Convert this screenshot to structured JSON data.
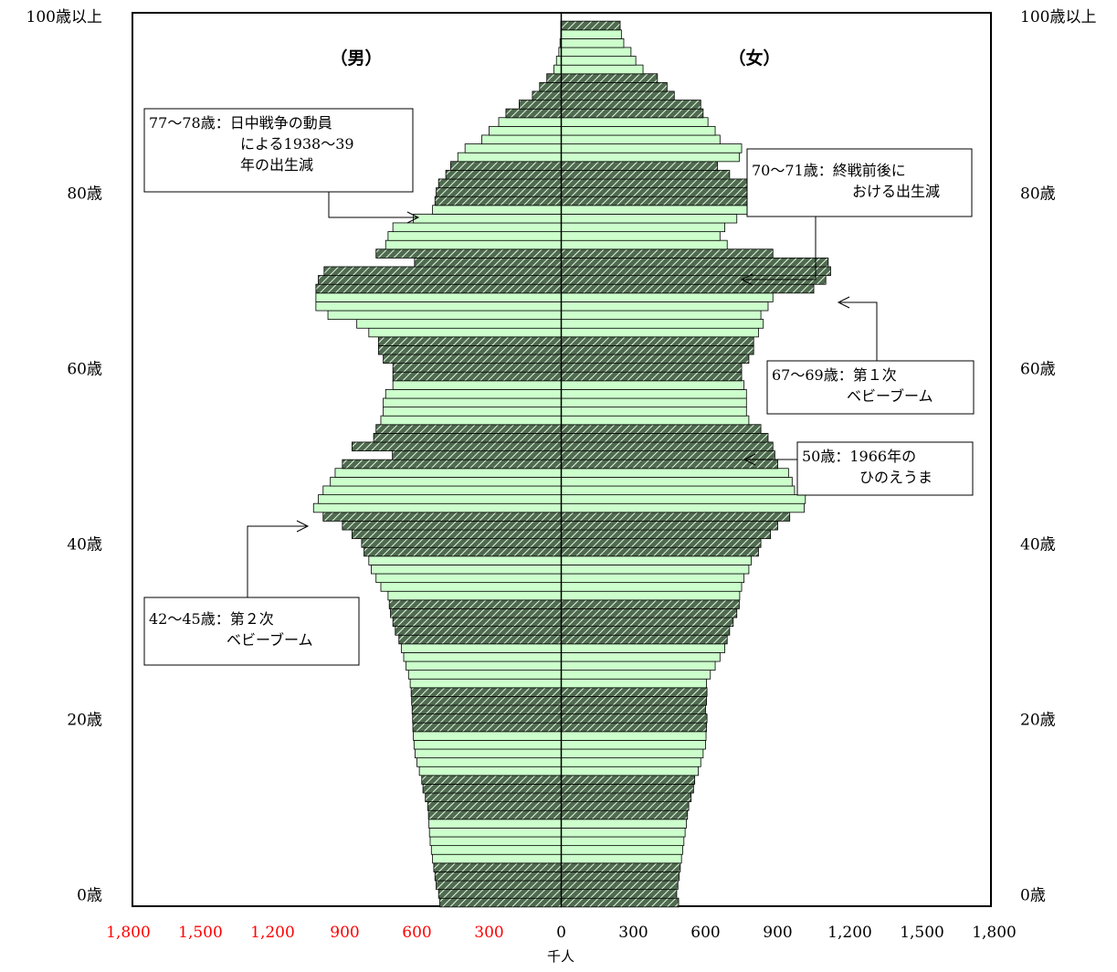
{
  "chart_data": {
    "type": "bar",
    "orientation": "horizontal-pyramid",
    "unit": "千人",
    "x_ticks": [
      {
        "value": -1800,
        "label": "1,800"
      },
      {
        "value": -1500,
        "label": "1,500"
      },
      {
        "value": -1200,
        "label": "1,200"
      },
      {
        "value": -900,
        "label": "900"
      },
      {
        "value": -600,
        "label": "600"
      },
      {
        "value": -300,
        "label": "300"
      },
      {
        "value": 0,
        "label": "0"
      },
      {
        "value": 300,
        "label": "300"
      },
      {
        "value": 600,
        "label": "600"
      },
      {
        "value": 900,
        "label": "900"
      },
      {
        "value": 1200,
        "label": "1,200"
      },
      {
        "value": 1500,
        "label": "1,500"
      },
      {
        "value": 1800,
        "label": "1,800"
      }
    ],
    "xlim": [
      -1800,
      1800
    ],
    "ylim": [
      0,
      100
    ],
    "age_ticks": [
      {
        "age": 0,
        "label": "0歳"
      },
      {
        "age": 20,
        "label": "20歳"
      },
      {
        "age": 40,
        "label": "40歳"
      },
      {
        "age": 60,
        "label": "60歳"
      },
      {
        "age": 80,
        "label": "80歳"
      },
      {
        "age": 100,
        "label": "100歳以上"
      }
    ],
    "male_label": "（男）",
    "female_label": "（女）",
    "colors": {
      "light": "#ccffcc",
      "dark": "#4f6b4f",
      "hatch": "#e8f5e8",
      "outline": "#000000"
    },
    "ages": [
      0,
      1,
      2,
      3,
      4,
      5,
      6,
      7,
      8,
      9,
      10,
      11,
      12,
      13,
      14,
      15,
      16,
      17,
      18,
      19,
      20,
      21,
      22,
      23,
      24,
      25,
      26,
      27,
      28,
      29,
      30,
      31,
      32,
      33,
      34,
      35,
      36,
      37,
      38,
      39,
      40,
      41,
      42,
      43,
      44,
      45,
      46,
      47,
      48,
      49,
      50,
      51,
      52,
      53,
      54,
      55,
      56,
      57,
      58,
      59,
      60,
      61,
      62,
      63,
      64,
      65,
      66,
      67,
      68,
      69,
      70,
      71,
      72,
      73,
      74,
      75,
      76,
      77,
      78,
      79,
      80,
      81,
      82,
      83,
      84,
      85,
      86,
      87,
      88,
      89,
      90,
      91,
      92,
      93,
      94,
      95,
      96,
      97,
      98,
      99,
      100
    ],
    "male": [
      505,
      510,
      520,
      525,
      530,
      535,
      540,
      545,
      548,
      550,
      552,
      555,
      565,
      575,
      580,
      590,
      600,
      608,
      612,
      615,
      617,
      618,
      620,
      622,
      624,
      628,
      635,
      645,
      655,
      665,
      675,
      690,
      700,
      710,
      715,
      720,
      750,
      770,
      790,
      800,
      820,
      830,
      870,
      910,
      990,
      1030,
      1010,
      990,
      960,
      940,
      910,
      702,
      870,
      780,
      770,
      750,
      740,
      740,
      730,
      700,
      700,
      700,
      740,
      760,
      760,
      800,
      850,
      970,
      1020,
      1020,
      1020,
      1010,
      986,
      610,
      770,
      730,
      720,
      700,
      615,
      535,
      525,
      520,
      510,
      480,
      460,
      430,
      400,
      330,
      300,
      260,
      230,
      175,
      120,
      90,
      60,
      30,
      20,
      10,
      5,
      2,
      2
    ],
    "female": [
      488,
      480,
      485,
      490,
      495,
      500,
      505,
      510,
      515,
      520,
      525,
      530,
      540,
      550,
      555,
      570,
      580,
      590,
      600,
      602,
      604,
      606,
      600,
      604,
      606,
      604,
      620,
      640,
      660,
      680,
      690,
      700,
      715,
      730,
      740,
      742,
      750,
      760,
      780,
      790,
      820,
      830,
      870,
      900,
      950,
      1010,
      1015,
      970,
      960,
      945,
      900,
      888,
      880,
      860,
      830,
      780,
      770,
      770,
      770,
      760,
      750,
      750,
      780,
      800,
      800,
      820,
      840,
      830,
      860,
      880,
      1050,
      1100,
      1120,
      1110,
      880,
      690,
      660,
      680,
      730,
      870,
      875,
      865,
      840,
      700,
      650,
      740,
      750,
      660,
      640,
      610,
      590,
      580,
      470,
      440,
      400,
      340,
      310,
      290,
      260,
      250,
      245
    ]
  },
  "annotations": [
    {
      "id": "a77",
      "lines": [
        "77〜78歳：日中戦争の動員",
        "による1938〜39",
        "年の出生減"
      ]
    },
    {
      "id": "a70",
      "lines": [
        "70〜71歳：終戦前後に",
        "おける出生減"
      ]
    },
    {
      "id": "a67",
      "lines": [
        "67〜69歳：第１次",
        "ベビーブーム"
      ]
    },
    {
      "id": "a50",
      "lines": [
        "50歳：1966年の",
        "ひのえうま"
      ]
    },
    {
      "id": "a42",
      "lines": [
        "42〜45歳：第２次",
        "ベビーブーム"
      ]
    }
  ]
}
